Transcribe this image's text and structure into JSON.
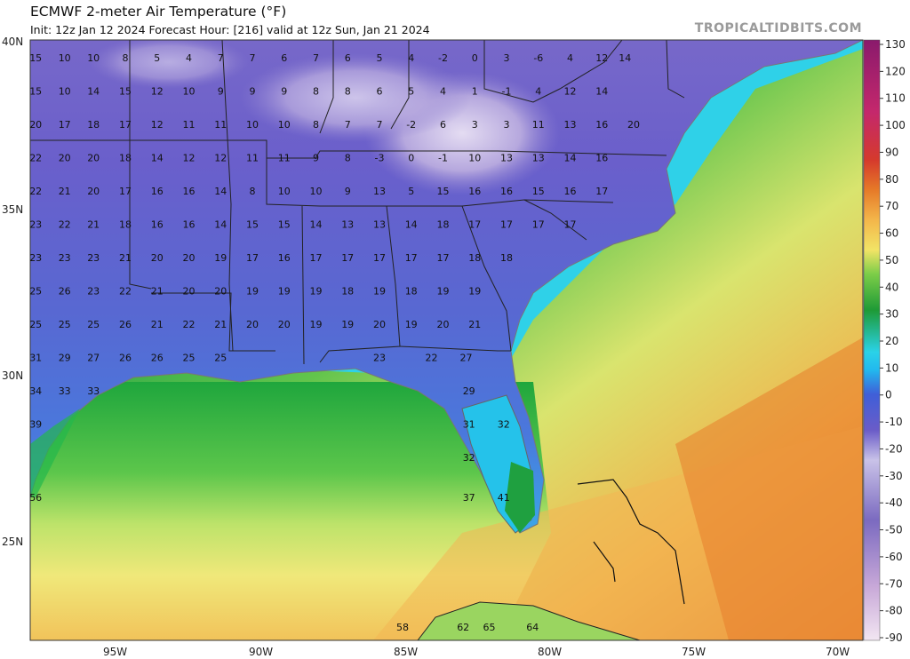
{
  "header": {
    "title": "ECMWF 2-meter Air Temperature (°F)",
    "subtitle": "Init: 12z Jan 12 2024   Forecast Hour: [216]   valid at 12z Sun, Jan 21 2024",
    "brand": "TROPICALTIDBITS.COM"
  },
  "axes": {
    "lat_labels": [
      "40N",
      "35N",
      "30N",
      "25N"
    ],
    "lon_labels": [
      "95W",
      "90W",
      "85W",
      "80W",
      "75W",
      "70W"
    ]
  },
  "colorbar": {
    "ticks": [
      "130",
      "120",
      "110",
      "100",
      "90",
      "80",
      "70",
      "60",
      "50",
      "40",
      "30",
      "20",
      "10",
      "0",
      "-10",
      "-20",
      "-30",
      "-40",
      "-50",
      "-60",
      "-70",
      "-80",
      "-90"
    ]
  },
  "station_values": [
    {
      "v": "15",
      "lon": -97.7,
      "lat": 39.5
    },
    {
      "v": "10",
      "lon": -96.7,
      "lat": 39.5
    },
    {
      "v": "10",
      "lon": -95.7,
      "lat": 39.5
    },
    {
      "v": "8",
      "lon": -94.6,
      "lat": 39.5
    },
    {
      "v": "5",
      "lon": -93.5,
      "lat": 39.5
    },
    {
      "v": "4",
      "lon": -92.4,
      "lat": 39.5
    },
    {
      "v": "7",
      "lon": -91.3,
      "lat": 39.5
    },
    {
      "v": "7",
      "lon": -90.2,
      "lat": 39.5
    },
    {
      "v": "6",
      "lon": -89.1,
      "lat": 39.5
    },
    {
      "v": "7",
      "lon": -88,
      "lat": 39.5
    },
    {
      "v": "6",
      "lon": -86.9,
      "lat": 39.5
    },
    {
      "v": "5",
      "lon": -85.8,
      "lat": 39.5
    },
    {
      "v": "4",
      "lon": -84.7,
      "lat": 39.5
    },
    {
      "v": "-2",
      "lon": -83.6,
      "lat": 39.5
    },
    {
      "v": "0",
      "lon": -82.5,
      "lat": 39.5
    },
    {
      "v": "3",
      "lon": -81.4,
      "lat": 39.5
    },
    {
      "v": "-6",
      "lon": -80.3,
      "lat": 39.5
    },
    {
      "v": "4",
      "lon": -79.2,
      "lat": 39.5
    },
    {
      "v": "12",
      "lon": -78.1,
      "lat": 39.5
    },
    {
      "v": "14",
      "lon": -77.3,
      "lat": 39.5
    },
    {
      "v": "15",
      "lon": -97.7,
      "lat": 38.5
    },
    {
      "v": "10",
      "lon": -96.7,
      "lat": 38.5
    },
    {
      "v": "14",
      "lon": -95.7,
      "lat": 38.5
    },
    {
      "v": "15",
      "lon": -94.6,
      "lat": 38.5
    },
    {
      "v": "12",
      "lon": -93.5,
      "lat": 38.5
    },
    {
      "v": "10",
      "lon": -92.4,
      "lat": 38.5
    },
    {
      "v": "9",
      "lon": -91.3,
      "lat": 38.5
    },
    {
      "v": "9",
      "lon": -90.2,
      "lat": 38.5
    },
    {
      "v": "9",
      "lon": -89.1,
      "lat": 38.5
    },
    {
      "v": "8",
      "lon": -88,
      "lat": 38.5
    },
    {
      "v": "8",
      "lon": -86.9,
      "lat": 38.5
    },
    {
      "v": "6",
      "lon": -85.8,
      "lat": 38.5
    },
    {
      "v": "5",
      "lon": -84.7,
      "lat": 38.5
    },
    {
      "v": "4",
      "lon": -83.6,
      "lat": 38.5
    },
    {
      "v": "1",
      "lon": -82.5,
      "lat": 38.5
    },
    {
      "v": "-1",
      "lon": -81.4,
      "lat": 38.5
    },
    {
      "v": "4",
      "lon": -80.3,
      "lat": 38.5
    },
    {
      "v": "12",
      "lon": -79.2,
      "lat": 38.5
    },
    {
      "v": "14",
      "lon": -78.1,
      "lat": 38.5
    },
    {
      "v": "20",
      "lon": -97.7,
      "lat": 37.5
    },
    {
      "v": "17",
      "lon": -96.7,
      "lat": 37.5
    },
    {
      "v": "18",
      "lon": -95.7,
      "lat": 37.5
    },
    {
      "v": "17",
      "lon": -94.6,
      "lat": 37.5
    },
    {
      "v": "12",
      "lon": -93.5,
      "lat": 37.5
    },
    {
      "v": "11",
      "lon": -92.4,
      "lat": 37.5
    },
    {
      "v": "11",
      "lon": -91.3,
      "lat": 37.5
    },
    {
      "v": "10",
      "lon": -90.2,
      "lat": 37.5
    },
    {
      "v": "10",
      "lon": -89.1,
      "lat": 37.5
    },
    {
      "v": "8",
      "lon": -88,
      "lat": 37.5
    },
    {
      "v": "7",
      "lon": -86.9,
      "lat": 37.5
    },
    {
      "v": "7",
      "lon": -85.8,
      "lat": 37.5
    },
    {
      "v": "-2",
      "lon": -84.7,
      "lat": 37.5
    },
    {
      "v": "6",
      "lon": -83.6,
      "lat": 37.5
    },
    {
      "v": "3",
      "lon": -82.5,
      "lat": 37.5
    },
    {
      "v": "3",
      "lon": -81.4,
      "lat": 37.5
    },
    {
      "v": "11",
      "lon": -80.3,
      "lat": 37.5
    },
    {
      "v": "13",
      "lon": -79.2,
      "lat": 37.5
    },
    {
      "v": "16",
      "lon": -78.1,
      "lat": 37.5
    },
    {
      "v": "20",
      "lon": -77,
      "lat": 37.5
    },
    {
      "v": "22",
      "lon": -97.7,
      "lat": 36.5
    },
    {
      "v": "20",
      "lon": -96.7,
      "lat": 36.5
    },
    {
      "v": "20",
      "lon": -95.7,
      "lat": 36.5
    },
    {
      "v": "18",
      "lon": -94.6,
      "lat": 36.5
    },
    {
      "v": "14",
      "lon": -93.5,
      "lat": 36.5
    },
    {
      "v": "12",
      "lon": -92.4,
      "lat": 36.5
    },
    {
      "v": "12",
      "lon": -91.3,
      "lat": 36.5
    },
    {
      "v": "11",
      "lon": -90.2,
      "lat": 36.5
    },
    {
      "v": "11",
      "lon": -89.1,
      "lat": 36.5
    },
    {
      "v": "9",
      "lon": -88,
      "lat": 36.5
    },
    {
      "v": "8",
      "lon": -86.9,
      "lat": 36.5
    },
    {
      "v": "-3",
      "lon": -85.8,
      "lat": 36.5
    },
    {
      "v": "0",
      "lon": -84.7,
      "lat": 36.5
    },
    {
      "v": "-1",
      "lon": -83.6,
      "lat": 36.5
    },
    {
      "v": "10",
      "lon": -82.5,
      "lat": 36.5
    },
    {
      "v": "13",
      "lon": -81.4,
      "lat": 36.5
    },
    {
      "v": "13",
      "lon": -80.3,
      "lat": 36.5
    },
    {
      "v": "14",
      "lon": -79.2,
      "lat": 36.5
    },
    {
      "v": "16",
      "lon": -78.1,
      "lat": 36.5
    },
    {
      "v": "22",
      "lon": -97.7,
      "lat": 35.5
    },
    {
      "v": "21",
      "lon": -96.7,
      "lat": 35.5
    },
    {
      "v": "20",
      "lon": -95.7,
      "lat": 35.5
    },
    {
      "v": "17",
      "lon": -94.6,
      "lat": 35.5
    },
    {
      "v": "16",
      "lon": -93.5,
      "lat": 35.5
    },
    {
      "v": "16",
      "lon": -92.4,
      "lat": 35.5
    },
    {
      "v": "14",
      "lon": -91.3,
      "lat": 35.5
    },
    {
      "v": "8",
      "lon": -90.2,
      "lat": 35.5
    },
    {
      "v": "10",
      "lon": -89.1,
      "lat": 35.5
    },
    {
      "v": "10",
      "lon": -88,
      "lat": 35.5
    },
    {
      "v": "9",
      "lon": -86.9,
      "lat": 35.5
    },
    {
      "v": "13",
      "lon": -85.8,
      "lat": 35.5
    },
    {
      "v": "5",
      "lon": -84.7,
      "lat": 35.5
    },
    {
      "v": "15",
      "lon": -83.6,
      "lat": 35.5
    },
    {
      "v": "16",
      "lon": -82.5,
      "lat": 35.5
    },
    {
      "v": "16",
      "lon": -81.4,
      "lat": 35.5
    },
    {
      "v": "15",
      "lon": -80.3,
      "lat": 35.5
    },
    {
      "v": "16",
      "lon": -79.2,
      "lat": 35.5
    },
    {
      "v": "17",
      "lon": -78.1,
      "lat": 35.5
    },
    {
      "v": "23",
      "lon": -97.7,
      "lat": 34.5
    },
    {
      "v": "22",
      "lon": -96.7,
      "lat": 34.5
    },
    {
      "v": "21",
      "lon": -95.7,
      "lat": 34.5
    },
    {
      "v": "18",
      "lon": -94.6,
      "lat": 34.5
    },
    {
      "v": "16",
      "lon": -93.5,
      "lat": 34.5
    },
    {
      "v": "16",
      "lon": -92.4,
      "lat": 34.5
    },
    {
      "v": "14",
      "lon": -91.3,
      "lat": 34.5
    },
    {
      "v": "15",
      "lon": -90.2,
      "lat": 34.5
    },
    {
      "v": "15",
      "lon": -89.1,
      "lat": 34.5
    },
    {
      "v": "14",
      "lon": -88,
      "lat": 34.5
    },
    {
      "v": "13",
      "lon": -86.9,
      "lat": 34.5
    },
    {
      "v": "13",
      "lon": -85.8,
      "lat": 34.5
    },
    {
      "v": "14",
      "lon": -84.7,
      "lat": 34.5
    },
    {
      "v": "18",
      "lon": -83.6,
      "lat": 34.5
    },
    {
      "v": "17",
      "lon": -82.5,
      "lat": 34.5
    },
    {
      "v": "17",
      "lon": -81.4,
      "lat": 34.5
    },
    {
      "v": "17",
      "lon": -80.3,
      "lat": 34.5
    },
    {
      "v": "17",
      "lon": -79.2,
      "lat": 34.5
    },
    {
      "v": "23",
      "lon": -97.7,
      "lat": 33.5
    },
    {
      "v": "23",
      "lon": -96.7,
      "lat": 33.5
    },
    {
      "v": "23",
      "lon": -95.7,
      "lat": 33.5
    },
    {
      "v": "21",
      "lon": -94.6,
      "lat": 33.5
    },
    {
      "v": "20",
      "lon": -93.5,
      "lat": 33.5
    },
    {
      "v": "20",
      "lon": -92.4,
      "lat": 33.5
    },
    {
      "v": "19",
      "lon": -91.3,
      "lat": 33.5
    },
    {
      "v": "17",
      "lon": -90.2,
      "lat": 33.5
    },
    {
      "v": "16",
      "lon": -89.1,
      "lat": 33.5
    },
    {
      "v": "17",
      "lon": -88,
      "lat": 33.5
    },
    {
      "v": "17",
      "lon": -86.9,
      "lat": 33.5
    },
    {
      "v": "17",
      "lon": -85.8,
      "lat": 33.5
    },
    {
      "v": "17",
      "lon": -84.7,
      "lat": 33.5
    },
    {
      "v": "17",
      "lon": -83.6,
      "lat": 33.5
    },
    {
      "v": "18",
      "lon": -82.5,
      "lat": 33.5
    },
    {
      "v": "18",
      "lon": -81.4,
      "lat": 33.5
    },
    {
      "v": "25",
      "lon": -97.7,
      "lat": 32.5
    },
    {
      "v": "26",
      "lon": -96.7,
      "lat": 32.5
    },
    {
      "v": "23",
      "lon": -95.7,
      "lat": 32.5
    },
    {
      "v": "22",
      "lon": -94.6,
      "lat": 32.5
    },
    {
      "v": "21",
      "lon": -93.5,
      "lat": 32.5
    },
    {
      "v": "20",
      "lon": -92.4,
      "lat": 32.5
    },
    {
      "v": "20",
      "lon": -91.3,
      "lat": 32.5
    },
    {
      "v": "19",
      "lon": -90.2,
      "lat": 32.5
    },
    {
      "v": "19",
      "lon": -89.1,
      "lat": 32.5
    },
    {
      "v": "19",
      "lon": -88,
      "lat": 32.5
    },
    {
      "v": "18",
      "lon": -86.9,
      "lat": 32.5
    },
    {
      "v": "19",
      "lon": -85.8,
      "lat": 32.5
    },
    {
      "v": "18",
      "lon": -84.7,
      "lat": 32.5
    },
    {
      "v": "19",
      "lon": -83.6,
      "lat": 32.5
    },
    {
      "v": "19",
      "lon": -82.5,
      "lat": 32.5
    },
    {
      "v": "25",
      "lon": -97.7,
      "lat": 31.5
    },
    {
      "v": "25",
      "lon": -96.7,
      "lat": 31.5
    },
    {
      "v": "25",
      "lon": -95.7,
      "lat": 31.5
    },
    {
      "v": "26",
      "lon": -94.6,
      "lat": 31.5
    },
    {
      "v": "21",
      "lon": -93.5,
      "lat": 31.5
    },
    {
      "v": "22",
      "lon": -92.4,
      "lat": 31.5
    },
    {
      "v": "21",
      "lon": -91.3,
      "lat": 31.5
    },
    {
      "v": "20",
      "lon": -90.2,
      "lat": 31.5
    },
    {
      "v": "20",
      "lon": -89.1,
      "lat": 31.5
    },
    {
      "v": "19",
      "lon": -88,
      "lat": 31.5
    },
    {
      "v": "19",
      "lon": -86.9,
      "lat": 31.5
    },
    {
      "v": "20",
      "lon": -85.8,
      "lat": 31.5
    },
    {
      "v": "19",
      "lon": -84.7,
      "lat": 31.5
    },
    {
      "v": "20",
      "lon": -83.6,
      "lat": 31.5
    },
    {
      "v": "21",
      "lon": -82.5,
      "lat": 31.5
    },
    {
      "v": "31",
      "lon": -97.7,
      "lat": 30.5
    },
    {
      "v": "29",
      "lon": -96.7,
      "lat": 30.5
    },
    {
      "v": "27",
      "lon": -95.7,
      "lat": 30.5
    },
    {
      "v": "26",
      "lon": -94.6,
      "lat": 30.5
    },
    {
      "v": "26",
      "lon": -93.5,
      "lat": 30.5
    },
    {
      "v": "25",
      "lon": -92.4,
      "lat": 30.5
    },
    {
      "v": "25",
      "lon": -91.3,
      "lat": 30.5
    },
    {
      "v": "23",
      "lon": -85.8,
      "lat": 30.5
    },
    {
      "v": "22",
      "lon": -84,
      "lat": 30.5
    },
    {
      "v": "27",
      "lon": -82.8,
      "lat": 30.5
    },
    {
      "v": "34",
      "lon": -97.7,
      "lat": 29.5
    },
    {
      "v": "33",
      "lon": -96.7,
      "lat": 29.5
    },
    {
      "v": "33",
      "lon": -95.7,
      "lat": 29.5
    },
    {
      "v": "29",
      "lon": -82.7,
      "lat": 29.5
    },
    {
      "v": "39",
      "lon": -97.7,
      "lat": 28.5
    },
    {
      "v": "31",
      "lon": -82.7,
      "lat": 28.5
    },
    {
      "v": "32",
      "lon": -81.5,
      "lat": 28.5
    },
    {
      "v": "32",
      "lon": -82.7,
      "lat": 27.5
    },
    {
      "v": "56",
      "lon": -97.7,
      "lat": 26.3
    },
    {
      "v": "37",
      "lon": -82.7,
      "lat": 26.3
    },
    {
      "v": "41",
      "lon": -81.5,
      "lat": 26.3
    },
    {
      "v": "58",
      "lon": -85,
      "lat": 22.4
    },
    {
      "v": "62",
      "lon": -82.9,
      "lat": 22.4
    },
    {
      "v": "65",
      "lon": -82,
      "lat": 22.4
    },
    {
      "v": "64",
      "lon": -80.5,
      "lat": 22.4
    }
  ],
  "legend_colors": {
    "cold": "#6b5bc7",
    "freezing": "#d2c7ea",
    "cool_ocean": "#23c6ee",
    "mild": "#1f9c3a",
    "warm": "#f4d04c",
    "hot": "#e06020"
  }
}
